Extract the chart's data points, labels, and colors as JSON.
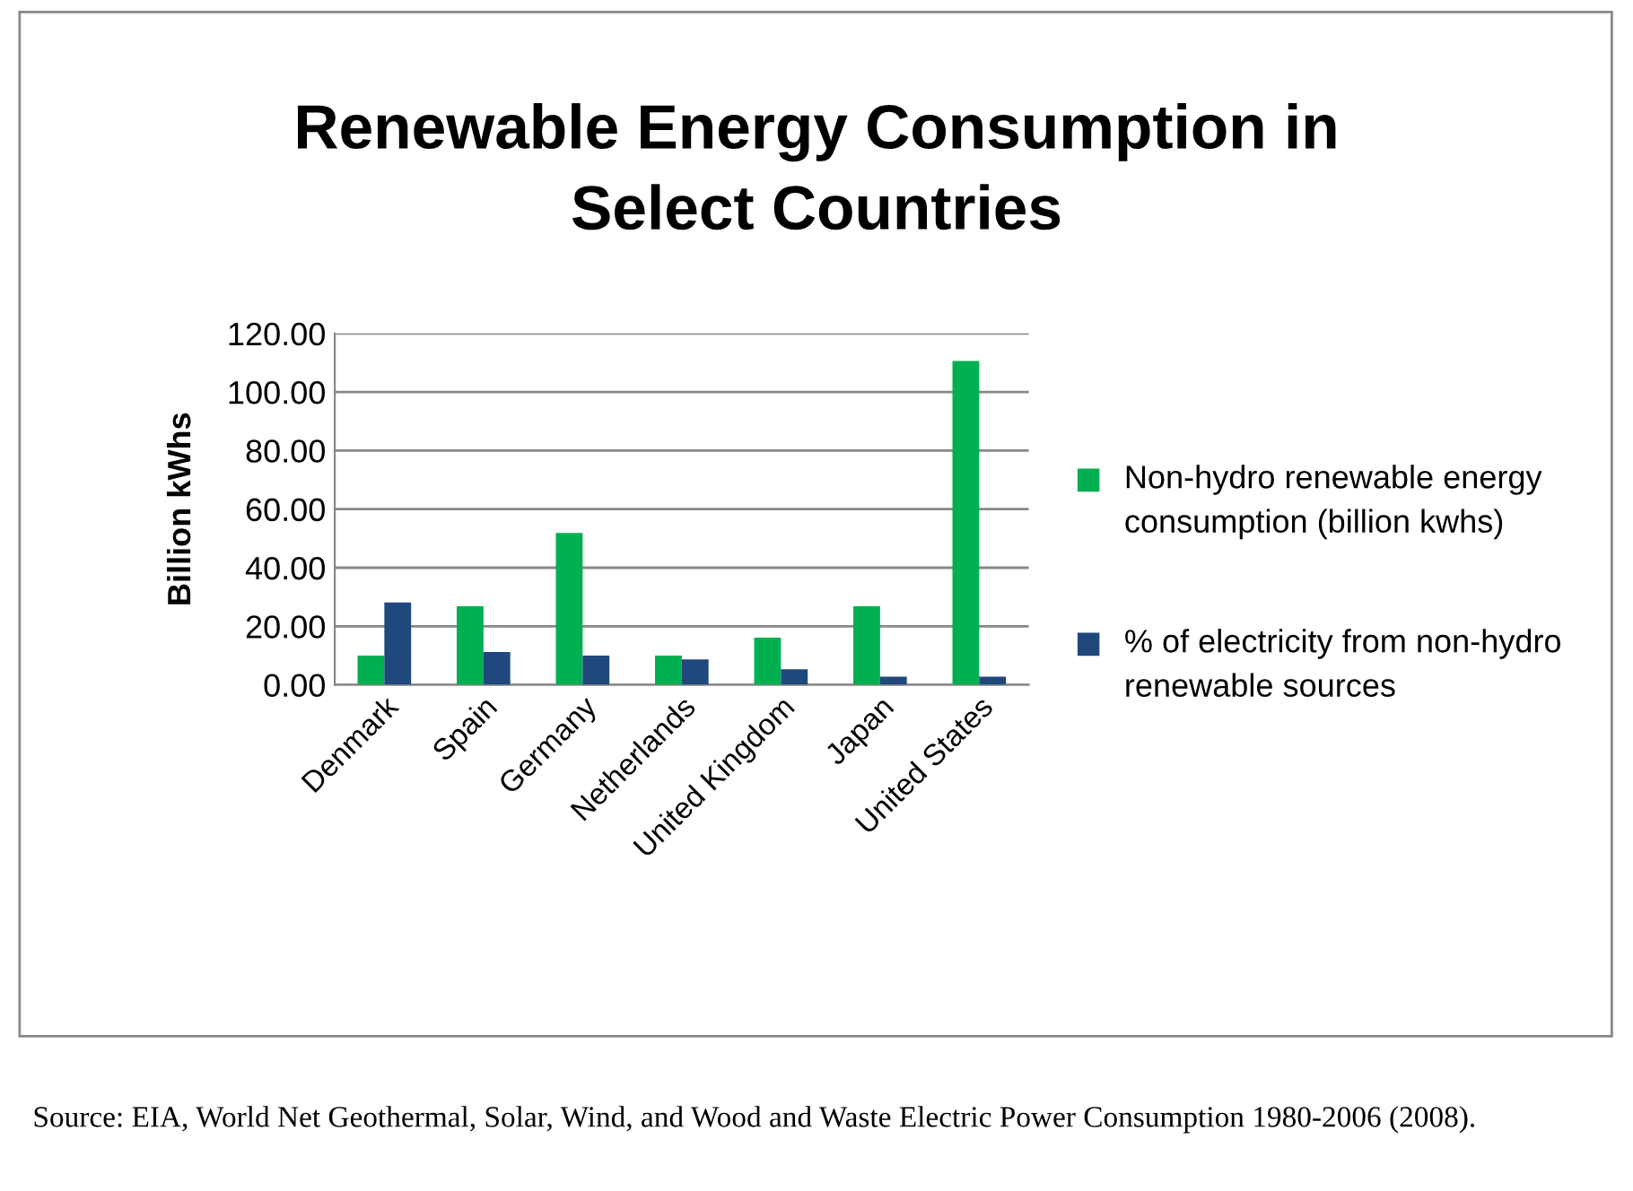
{
  "chart_data": {
    "type": "bar",
    "title": "Renewable Energy Consumption in\nSelect Countries",
    "ylabel": "Billion kWhs",
    "categories": [
      "Denmark",
      "Spain",
      "Germany",
      "Netherlands",
      "United Kingdom",
      "Japan",
      "United States"
    ],
    "series": [
      {
        "name": "Non-hydro renewable energy consumption (billion kwhs)",
        "color": "#00b050",
        "values": [
          10.0,
          26.8,
          51.9,
          10.0,
          16.1,
          26.8,
          110.6
        ]
      },
      {
        "name": "% of electricity from non-hydro renewable sources",
        "color": "#1f497d",
        "values": [
          28.1,
          11.2,
          10.0,
          8.7,
          5.3,
          2.8,
          2.8
        ]
      }
    ],
    "ylim": [
      0,
      120
    ],
    "yticks": [
      {
        "value": 0,
        "label": "0.00"
      },
      {
        "value": 20,
        "label": "20.00"
      },
      {
        "value": 40,
        "label": "40.00"
      },
      {
        "value": 60,
        "label": "60.00"
      },
      {
        "value": 80,
        "label": "80.00"
      },
      {
        "value": 100,
        "label": "100.00"
      },
      {
        "value": 120,
        "label": "120.00"
      }
    ],
    "grid": "y",
    "legend": "right",
    "annotations": [
      "Source: EIA, World Net Geothermal, Solar, Wind, and Wood and Waste Electric Power Consumption 1980-2006 (2008)."
    ]
  }
}
